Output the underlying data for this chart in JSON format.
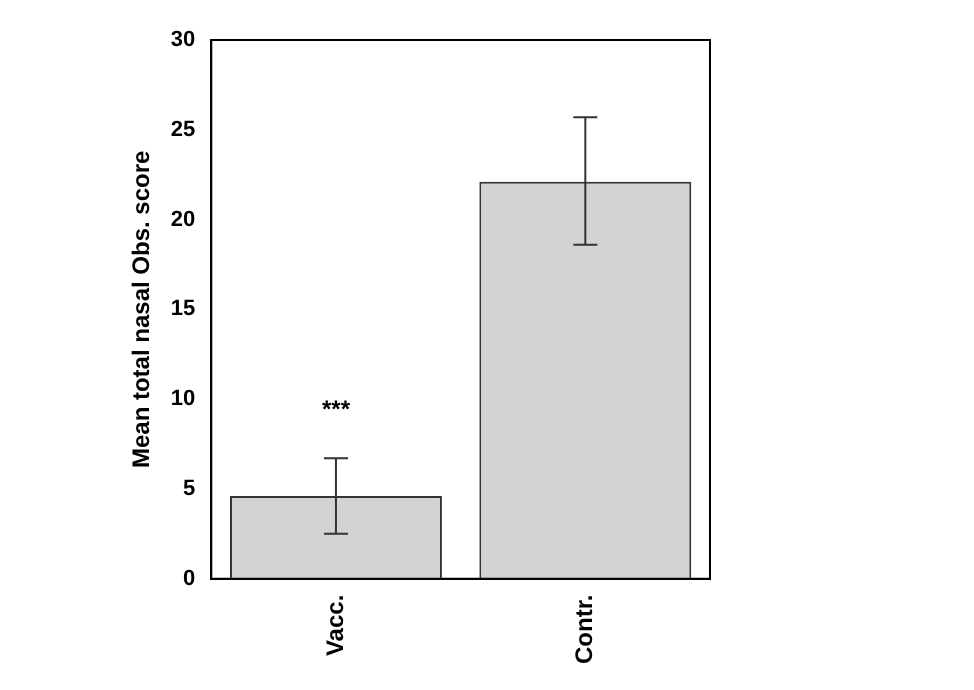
{
  "chart_data": {
    "type": "bar",
    "ylabel": "Mean total nasal Obs. score",
    "categories": [
      "Vacc.",
      "Contr."
    ],
    "values": [
      4.6,
      22.1
    ],
    "errors": [
      [
        2.5,
        6.7
      ],
      [
        18.6,
        25.7
      ]
    ],
    "color": "#d3d3d3",
    "ylim": [
      0,
      30
    ],
    "yticks": [
      0,
      5,
      10,
      15,
      20,
      25,
      30
    ],
    "annotations": [
      "***"
    ],
    "grid": false,
    "legend": false
  }
}
